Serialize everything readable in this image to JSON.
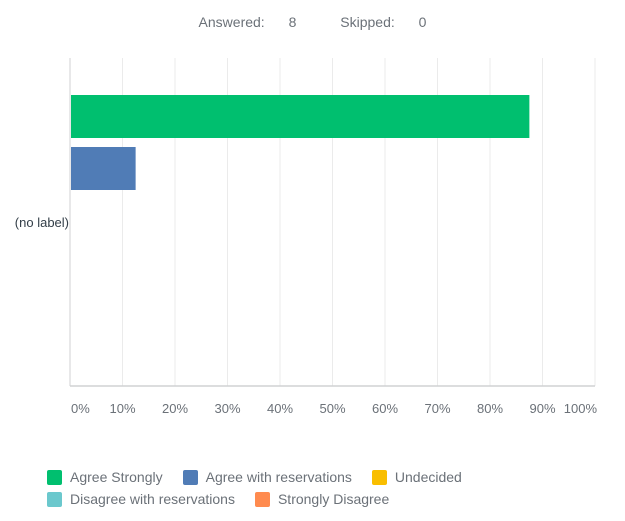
{
  "summary": {
    "answered_label": "Answered:",
    "answered": "8",
    "skipped_label": "Skipped:",
    "skipped": "0"
  },
  "chart_data": {
    "type": "bar",
    "orientation": "horizontal",
    "categories": [
      "(no label)"
    ],
    "series": [
      {
        "name": "Agree Strongly",
        "values": [
          87.5
        ],
        "color": "#00bf6f"
      },
      {
        "name": "Agree with reservations",
        "values": [
          12.5
        ],
        "color": "#507cb6"
      },
      {
        "name": "Undecided",
        "values": [
          0
        ],
        "color": "#f9be00"
      },
      {
        "name": "Disagree with reservations",
        "values": [
          0
        ],
        "color": "#6bc8cd"
      },
      {
        "name": "Strongly Disagree",
        "values": [
          0
        ],
        "color": "#ff8b4f"
      }
    ],
    "xlim": [
      0,
      100
    ],
    "xticks": [
      "0%",
      "10%",
      "20%",
      "30%",
      "40%",
      "50%",
      "60%",
      "70%",
      "80%",
      "90%",
      "100%"
    ],
    "grid": true,
    "legend_position": "bottom"
  }
}
